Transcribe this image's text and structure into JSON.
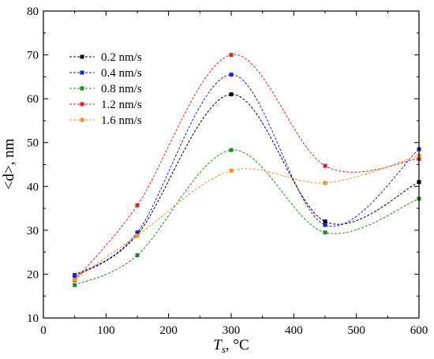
{
  "chart_data": {
    "type": "line",
    "x": [
      50,
      150,
      300,
      450,
      600
    ],
    "xlabel": {
      "main": "T",
      "sub": "s",
      "rest": ", °C"
    },
    "ylabel": "<d>, nm",
    "xlim": [
      0,
      600
    ],
    "ylim": [
      10,
      80
    ],
    "xticks": [
      "0",
      "100",
      "200",
      "300",
      "400",
      "500",
      "600"
    ],
    "yticks": [
      "10",
      "20",
      "30",
      "40",
      "50",
      "60",
      "70",
      "80"
    ],
    "grid": false,
    "legend_position": "top-left",
    "series": [
      {
        "name": "0.2 nm/s",
        "color": "#000000",
        "values": [
          19.5,
          29.0,
          61.0,
          32.0,
          41.0
        ]
      },
      {
        "name": "0.4 nm/s",
        "color": "#1f1fd6",
        "values": [
          19.8,
          29.5,
          65.5,
          31.2,
          48.5
        ]
      },
      {
        "name": "0.8 nm/s",
        "color": "#1a8f1a",
        "values": [
          17.5,
          24.3,
          48.3,
          29.5,
          37.2
        ]
      },
      {
        "name": "1.2 nm/s",
        "color": "#e02020",
        "values": [
          18.6,
          35.7,
          70.0,
          44.7,
          46.3
        ]
      },
      {
        "name": "1.6 nm/s",
        "color": "#f0922a",
        "values": [
          18.8,
          28.8,
          43.6,
          40.8,
          47.0
        ]
      }
    ]
  }
}
